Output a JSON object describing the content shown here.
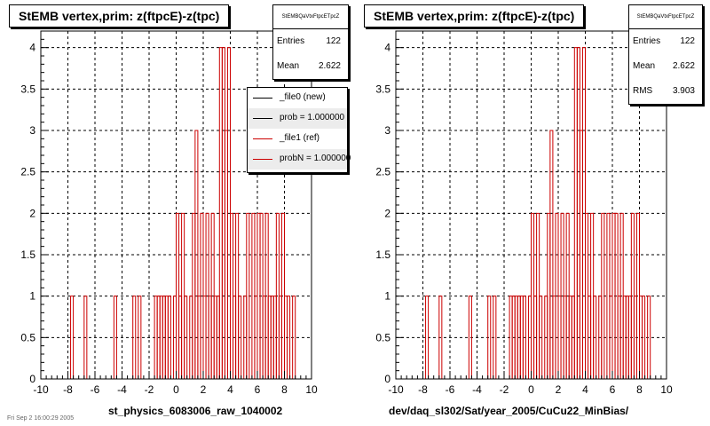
{
  "chart_data": [
    {
      "type": "step",
      "title": "StEMB  vertex,prim: z(ftpcE)-z(tpc)",
      "xlabel": "st_physics_6083006_raw_1040002",
      "ylabel": "",
      "xlim": [
        -10,
        10
      ],
      "ylim": [
        0,
        4.2
      ],
      "x_ticks": [
        "-10",
        "-8",
        "-6",
        "-4",
        "-2",
        "0",
        "2",
        "4",
        "6",
        "8",
        "10"
      ],
      "y_ticks": [
        "0",
        "0.5",
        "1",
        "1.5",
        "2",
        "2.5",
        "3",
        "3.5",
        "4"
      ],
      "grid": true,
      "bin_width": 0.2,
      "series": [
        {
          "name": "_file1 (ref)",
          "color": "#cc0000",
          "x": [
            -7.8,
            -7.0,
            -6.8,
            -4.8,
            -4.6,
            -3.8,
            -3.2,
            -3.0,
            -2.8,
            -1.8,
            -1.6,
            -1.4,
            -1.2,
            -1.0,
            -0.8,
            -0.6,
            -0.4,
            -0.2,
            0.0,
            0.2,
            0.4,
            0.6,
            0.8,
            1.0,
            1.2,
            1.4,
            1.6,
            1.8,
            2.0,
            2.2,
            2.4,
            2.6,
            2.8,
            3.0,
            3.2,
            3.4,
            3.6,
            3.8,
            4.0,
            4.2,
            4.4,
            4.6,
            4.8,
            5.0,
            5.2,
            5.4,
            5.6,
            5.8,
            6.0,
            6.2,
            6.4,
            6.6,
            6.8,
            7.0,
            7.2,
            7.4,
            7.6,
            7.8,
            8.0,
            8.2,
            8.4,
            8.6,
            8.8
          ],
          "y": [
            1,
            0,
            1,
            0,
            1,
            0,
            1,
            0,
            1,
            0,
            1,
            1,
            1,
            1,
            1,
            1,
            0,
            1,
            2,
            1,
            2,
            1,
            0,
            1,
            2,
            3,
            1,
            2,
            1,
            2,
            1,
            2,
            1,
            1,
            4,
            4,
            3,
            4,
            2,
            1,
            2,
            1,
            0,
            1,
            2,
            0,
            2,
            1,
            2,
            2,
            1,
            2,
            1,
            1,
            1,
            2,
            1,
            2,
            1,
            1,
            0,
            1,
            0
          ]
        },
        {
          "name": "_file0 (new)",
          "color": "#000000",
          "x": [],
          "y": []
        }
      ],
      "stats": {
        "name": "StEMBQaVtxFtpcETpcZ",
        "entries_label": "Entries",
        "entries": "122",
        "mean_label": "Mean",
        "mean": "2.622"
      },
      "legend": {
        "placement": "top-right",
        "entries": [
          {
            "label": "_file0 (new)",
            "color": "#000000"
          },
          {
            "label": "prob = 1.000000",
            "color": "#000000"
          },
          {
            "label": "_file1 (ref)",
            "color": "#cc0000"
          },
          {
            "label": "probN = 1.000000",
            "color": "#cc0000"
          }
        ]
      }
    },
    {
      "type": "step",
      "title": "StEMB  vertex,prim: z(ftpcE)-z(tpc)",
      "xlabel": "dev/daq_sl302/Sat/year_2005/CuCu22_MinBias/",
      "ylabel": "",
      "xlim": [
        -10,
        10
      ],
      "ylim": [
        0,
        4.2
      ],
      "x_ticks": [
        "-10",
        "-8",
        "-6",
        "-4",
        "-2",
        "0",
        "2",
        "4",
        "6",
        "8",
        "10"
      ],
      "y_ticks": [
        "0",
        "0.5",
        "1",
        "1.5",
        "2",
        "2.5",
        "3",
        "3.5",
        "4"
      ],
      "grid": true,
      "bin_width": 0.2,
      "series": [
        {
          "name": "",
          "color": "#cc0000",
          "x": [
            -7.8,
            -7.0,
            -6.8,
            -4.8,
            -4.6,
            -3.8,
            -3.2,
            -3.0,
            -2.8,
            -1.8,
            -1.6,
            -1.4,
            -1.2,
            -1.0,
            -0.8,
            -0.6,
            -0.4,
            -0.2,
            0.0,
            0.2,
            0.4,
            0.6,
            0.8,
            1.0,
            1.2,
            1.4,
            1.6,
            1.8,
            2.0,
            2.2,
            2.4,
            2.6,
            2.8,
            3.0,
            3.2,
            3.4,
            3.6,
            3.8,
            4.0,
            4.2,
            4.4,
            4.6,
            4.8,
            5.0,
            5.2,
            5.4,
            5.6,
            5.8,
            6.0,
            6.2,
            6.4,
            6.6,
            6.8,
            7.0,
            7.2,
            7.4,
            7.6,
            7.8,
            8.0,
            8.2,
            8.4,
            8.6,
            8.8
          ],
          "y": [
            1,
            0,
            1,
            0,
            1,
            0,
            1,
            0,
            1,
            0,
            1,
            1,
            1,
            1,
            1,
            1,
            0,
            1,
            2,
            1,
            2,
            1,
            0,
            1,
            2,
            3,
            1,
            2,
            1,
            2,
            1,
            2,
            1,
            1,
            4,
            4,
            3,
            4,
            2,
            1,
            2,
            1,
            0,
            1,
            2,
            0,
            2,
            1,
            2,
            2,
            1,
            2,
            1,
            1,
            1,
            2,
            1,
            2,
            1,
            1,
            0,
            1,
            0
          ]
        }
      ],
      "stats": {
        "name": "StEMBQaVtxFtpcETpcZ",
        "entries_label": "Entries",
        "entries": "122",
        "mean_label": "Mean",
        "mean": "2.622",
        "rms_label": "RMS",
        "rms": "3.903"
      }
    }
  ],
  "footer": "Fri Sep  2 16:00:29 2005"
}
